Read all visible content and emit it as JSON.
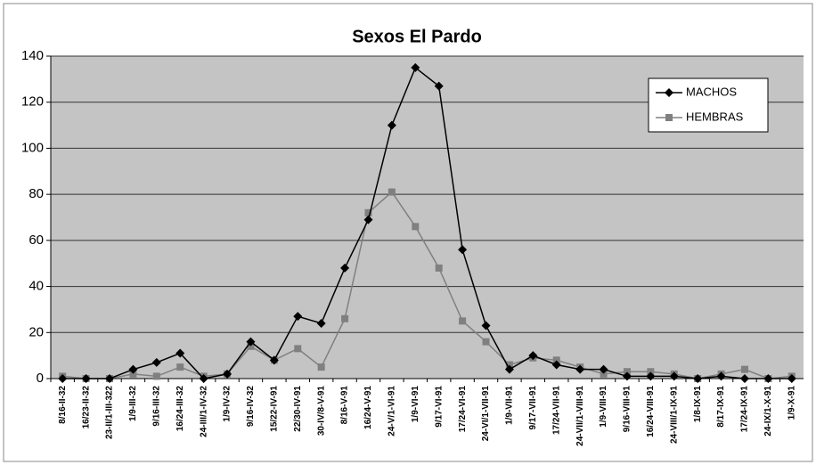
{
  "chart_data": {
    "type": "line",
    "title": "Sexos El Pardo",
    "categories": [
      "8/16-II-32",
      "16/23-II-32",
      "23-II/1-III-322",
      "1/9-III-32",
      "9/16-III-32",
      "16/24-III-32",
      "24-III/1-IV-32",
      "1/9-IV-32",
      "9/16-IV-32",
      "15/22-IV-91",
      "22/30-IV-91",
      "30-IV/8-V-91",
      "8/16-V-91",
      "16/24-V-91",
      "24-V/1-VI-91",
      "1/9-VI-91",
      "9/17-VI-91",
      "17/24-VI-91",
      "24-VI/1-VII-91",
      "1/9-VII-91",
      "9/17-VII-91",
      "17/24-VII-91",
      "24-VII/1-VIII-91",
      "1/9-VIII-91",
      "9/16-VIII-91",
      "16/24-VIII-91",
      "24-VIII/1-IX-91",
      "1/8-IX-91",
      "8/17-IX-91",
      "17/24-IX-91",
      "24-IX/1-X-91",
      "1/9-X-91"
    ],
    "series": [
      {
        "name": "MACHOS",
        "color": "#000000",
        "marker": "diamond",
        "values": [
          0,
          0,
          0,
          4,
          7,
          11,
          0,
          2,
          16,
          8,
          27,
          24,
          48,
          69,
          110,
          135,
          127,
          56,
          23,
          4,
          10,
          6,
          4,
          4,
          1,
          1,
          1,
          0,
          1,
          0,
          0,
          0
        ]
      },
      {
        "name": "HEMBRAS",
        "color": "#808080",
        "marker": "square",
        "values": [
          1,
          0,
          0,
          2,
          1,
          5,
          1,
          2,
          14,
          8,
          13,
          5,
          26,
          72,
          81,
          66,
          48,
          25,
          16,
          6,
          9,
          8,
          5,
          2,
          3,
          3,
          2,
          0,
          2,
          4,
          0,
          1
        ]
      }
    ],
    "ylim": [
      0,
      140
    ],
    "yticks": [
      0,
      20,
      40,
      60,
      80,
      100,
      120,
      140
    ],
    "grid": true,
    "legend": "upper right"
  }
}
